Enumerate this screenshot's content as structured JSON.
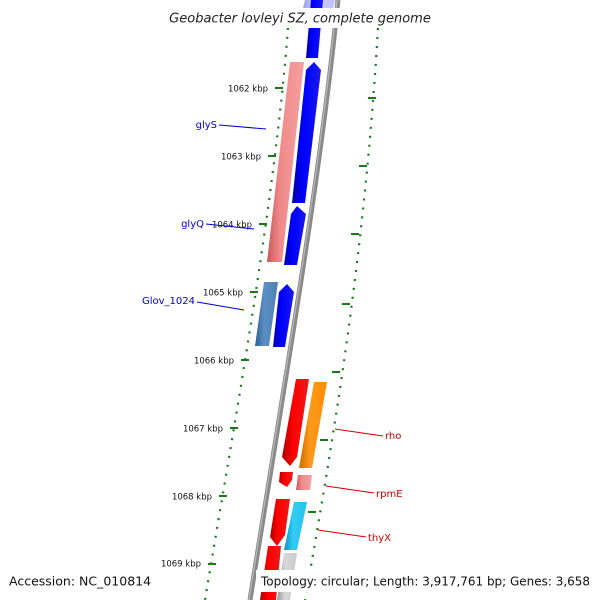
{
  "title": "Geobacter lovleyi SZ, complete genome",
  "footer": {
    "accession": "Accession: NC_010814",
    "topology": "Topology: circular; Length: 3,917,761 bp; Genes: 3,658"
  },
  "ticks": [
    {
      "label": "1062 kbp"
    },
    {
      "label": "1063 kbp"
    },
    {
      "label": "1064 kbp"
    },
    {
      "label": "1065 kbp"
    },
    {
      "label": "1066 kbp"
    },
    {
      "label": "1067 kbp"
    },
    {
      "label": "1068 kbp"
    },
    {
      "label": "1069 kbp"
    }
  ],
  "gene_labels": [
    {
      "label": "glyS",
      "color": "#0000cc"
    },
    {
      "label": "glyQ",
      "color": "#0000cc"
    },
    {
      "label": "Glov_1024",
      "color": "#0000cc"
    },
    {
      "label": "rho",
      "color": "#cc0000"
    },
    {
      "label": "rpmE",
      "color": "#cc0000"
    },
    {
      "label": "thyX",
      "color": "#cc0000"
    }
  ],
  "colors": {
    "backbone": "#8a8a8a",
    "forward_cds": "#0000ee",
    "reverse_cds": "#ee0000",
    "gc_content": "#1a7a1a",
    "cog_pink": "#ee8080",
    "cog_steel": "#4f7fb0",
    "cog_orange": "#ff8c00",
    "cog_cyan": "#22c0ee",
    "cog_grey": "#c8c8c8",
    "cog_lavender": "#c0c0ff"
  }
}
